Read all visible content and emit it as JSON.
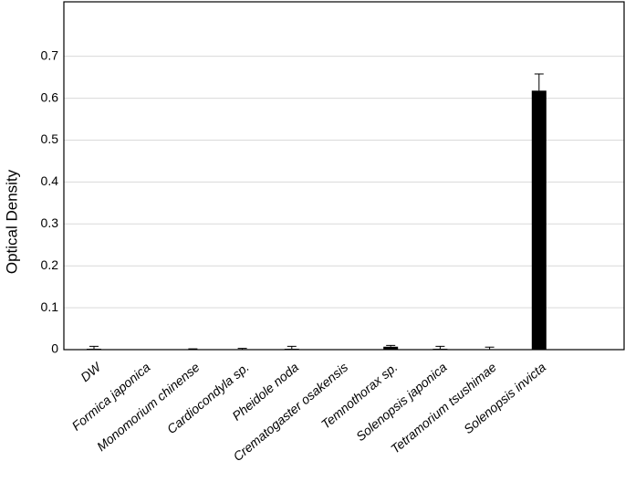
{
  "chart_data": {
    "type": "bar",
    "y_label": "Optical Density",
    "categories": [
      "DW",
      "Formica japonica",
      "Monomorium chinense",
      "Cardiocondyla sp.",
      "Pheidole noda",
      "Crematogaster osakensis",
      "Temnothorax sp.",
      "Solenopsis japonica",
      "Tetramorium tsushimae",
      "Solenopsis invicta"
    ],
    "values": [
      0.002,
      0,
      0,
      0,
      0.002,
      0,
      0.007,
      0.002,
      0.001,
      0.618
    ],
    "errors": [
      0.006,
      0,
      0.002,
      0.003,
      0.006,
      0,
      0.003,
      0.006,
      0.005,
      0.04
    ],
    "color": "#000000",
    "ylim": [
      0,
      0.83
    ],
    "yticks": [
      0,
      0.1,
      0.2,
      0.3,
      0.4,
      0.5,
      0.6,
      0.7
    ],
    "grid": true
  }
}
